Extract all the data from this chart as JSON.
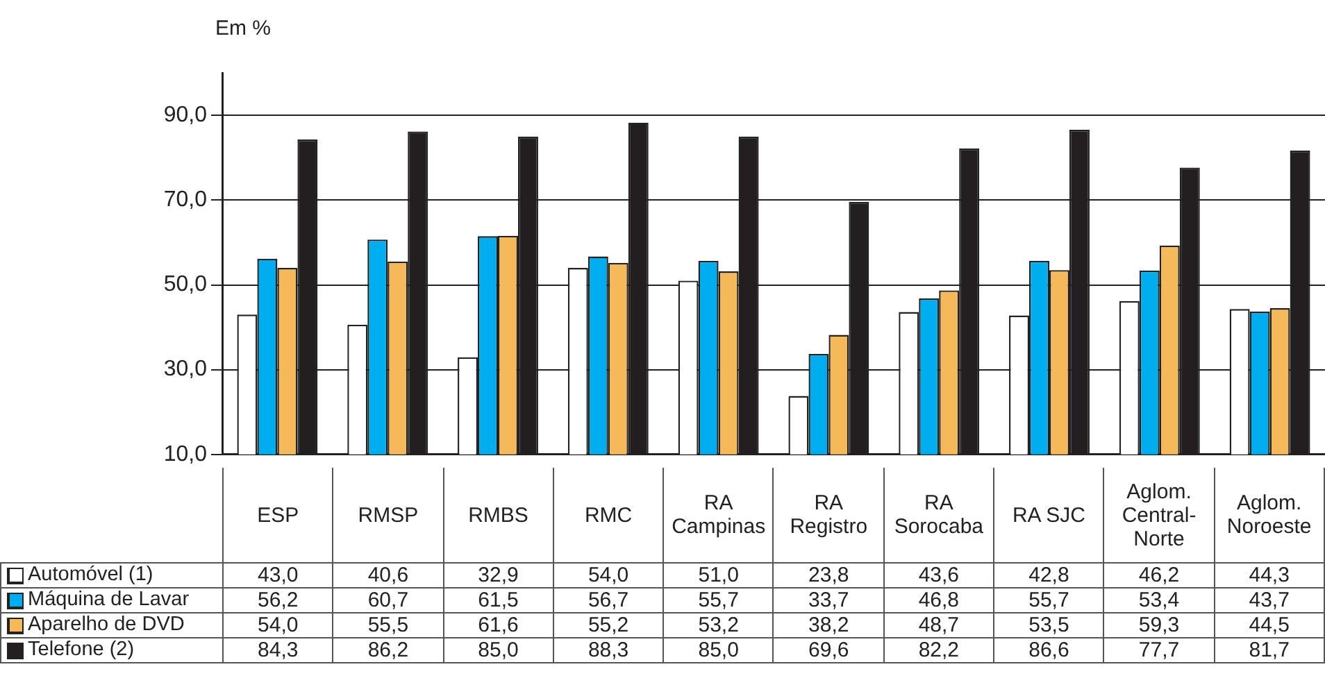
{
  "chart_data": {
    "type": "bar",
    "ylabel": "Em %",
    "categories": [
      "ESP",
      "RMSP",
      "RMBS",
      "RMC",
      "RA Campinas",
      "RA Registro",
      "RA Sorocaba",
      "RA SJC",
      "Aglom. Central-Norte",
      "Aglom. Noroeste"
    ],
    "series": [
      {
        "name": "Automóvel (1)",
        "color": "#ffffff",
        "values": [
          43.0,
          40.6,
          32.9,
          54.0,
          51.0,
          23.8,
          43.6,
          42.8,
          46.2,
          44.3
        ],
        "value_labels": [
          "43,0",
          "40,6",
          "32,9",
          "54,0",
          "51,0",
          "23,8",
          "43,6",
          "42,8",
          "46,2",
          "44,3"
        ]
      },
      {
        "name": "Máquina de Lavar",
        "color": "#00aeef",
        "values": [
          56.2,
          60.7,
          61.5,
          56.7,
          55.7,
          33.7,
          46.8,
          55.7,
          53.4,
          43.7
        ],
        "value_labels": [
          "56,2",
          "60,7",
          "61,5",
          "56,7",
          "55,7",
          "33,7",
          "46,8",
          "55,7",
          "53,4",
          "43,7"
        ]
      },
      {
        "name": "Aparelho de DVD",
        "color": "#f5b95a",
        "values": [
          54.0,
          55.5,
          61.6,
          55.2,
          53.2,
          38.2,
          48.7,
          53.5,
          59.3,
          44.5
        ],
        "value_labels": [
          "54,0",
          "55,5",
          "61,6",
          "55,2",
          "53,2",
          "38,2",
          "48,7",
          "53,5",
          "59,3",
          "44,5"
        ]
      },
      {
        "name": "Telefone (2)",
        "color": "#231f20",
        "values": [
          84.3,
          86.2,
          85.0,
          88.3,
          85.0,
          69.6,
          82.2,
          86.6,
          77.7,
          81.7
        ],
        "value_labels": [
          "84,3",
          "86,2",
          "85,0",
          "88,3",
          "85,0",
          "69,6",
          "82,2",
          "86,6",
          "77,7",
          "81,7"
        ]
      }
    ],
    "ylim": [
      10,
      100
    ],
    "yticks": [
      {
        "value": 10,
        "label": "10,0"
      },
      {
        "value": 30,
        "label": "30,0"
      },
      {
        "value": 50,
        "label": "50,0"
      },
      {
        "value": 70,
        "label": "70,0"
      },
      {
        "value": 90,
        "label": "90,0"
      }
    ],
    "grid": "y",
    "legend": "bottom left"
  }
}
